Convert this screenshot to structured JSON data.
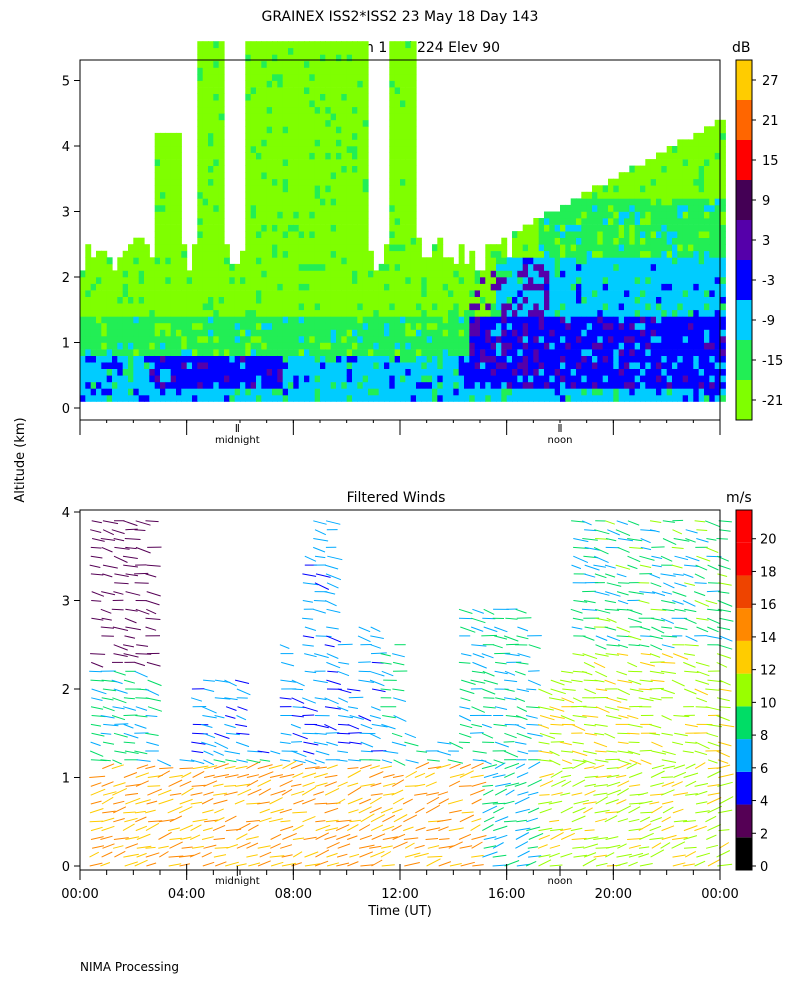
{
  "title": "GRAINEX ISS2*ISS2  23 May 18 Day 143",
  "footer": "NIMA Processing",
  "ylabel": "Altitude (km)",
  "xlabel": "Time (UT)",
  "chart_data": [
    {
      "type": "heatmap",
      "title": "SNR Beam 1 Azi 224 Elev 90",
      "ylim": [
        0,
        5.5
      ],
      "xlim": [
        0,
        24
      ],
      "y_ticks": [
        "0",
        "1",
        "2",
        "3",
        "4",
        "5"
      ],
      "x_markers": [
        "midnight",
        "noon"
      ],
      "colorbar": {
        "unit": "dB",
        "ticks": [
          "-21",
          "-15",
          "-9",
          "-3",
          "3",
          "9",
          "15",
          "21",
          "27"
        ],
        "colors": [
          "#7fff00",
          "#22ee55",
          "#00ccff",
          "#0000ff",
          "#5500aa",
          "#440055",
          "#ff0000",
          "#ff6600",
          "#ffcc00"
        ]
      }
    },
    {
      "type": "scatter",
      "title": "Filtered Winds",
      "ylim": [
        0,
        4
      ],
      "xlim": [
        0,
        24
      ],
      "y_ticks": [
        "0",
        "1",
        "2",
        "3",
        "4"
      ],
      "x_ticks": [
        "00:00",
        "04:00",
        "08:00",
        "12:00",
        "16:00",
        "20:00",
        "00:00"
      ],
      "x_markers": [
        "midnight",
        "noon"
      ],
      "colorbar": {
        "unit": "m/s",
        "ticks": [
          "0",
          "2",
          "4",
          "6",
          "8",
          "10",
          "12",
          "14",
          "16",
          "18",
          "20"
        ],
        "colors": [
          "#000000",
          "#550055",
          "#0000ff",
          "#00aaff",
          "#00dd66",
          "#99ff00",
          "#ffcc00",
          "#ff8800",
          "#ee4400",
          "#ff0000",
          "#ff0000"
        ]
      }
    }
  ]
}
